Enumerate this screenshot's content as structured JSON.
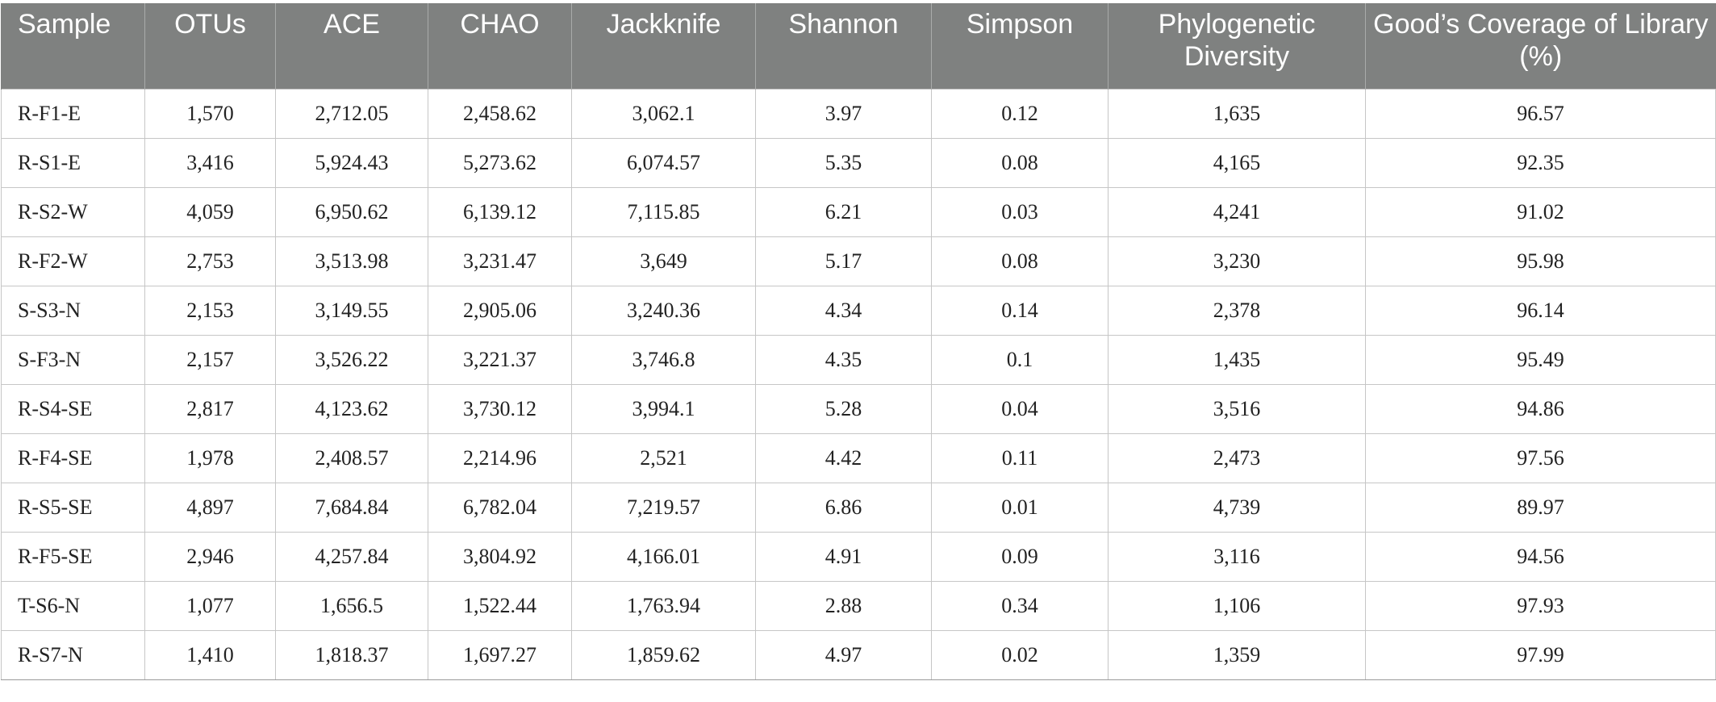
{
  "table": {
    "headers": [
      "Sample",
      "OTUs",
      "ACE",
      "CHAO",
      "Jackknife",
      "Shannon",
      "Simpson",
      "Phylogenetic Diversity",
      "Good’s Coverage of Library (%)"
    ],
    "rows": [
      [
        "R-F1-E",
        "1,570",
        "2,712.05",
        "2,458.62",
        "3,062.1",
        "3.97",
        "0.12",
        "1,635",
        "96.57"
      ],
      [
        "R-S1-E",
        "3,416",
        "5,924.43",
        "5,273.62",
        "6,074.57",
        "5.35",
        "0.08",
        "4,165",
        "92.35"
      ],
      [
        "R-S2-W",
        "4,059",
        "6,950.62",
        "6,139.12",
        "7,115.85",
        "6.21",
        "0.03",
        "4,241",
        "91.02"
      ],
      [
        "R-F2-W",
        "2,753",
        "3,513.98",
        "3,231.47",
        "3,649",
        "5.17",
        "0.08",
        "3,230",
        "95.98"
      ],
      [
        "S-S3-N",
        "2,153",
        "3,149.55",
        "2,905.06",
        "3,240.36",
        "4.34",
        "0.14",
        "2,378",
        "96.14"
      ],
      [
        "S-F3-N",
        "2,157",
        "3,526.22",
        "3,221.37",
        "3,746.8",
        "4.35",
        "0.1",
        "1,435",
        "95.49"
      ],
      [
        "R-S4-SE",
        "2,817",
        "4,123.62",
        "3,730.12",
        "3,994.1",
        "5.28",
        "0.04",
        "3,516",
        "94.86"
      ],
      [
        "R-F4-SE",
        "1,978",
        "2,408.57",
        "2,214.96",
        "2,521",
        "4.42",
        "0.11",
        "2,473",
        "97.56"
      ],
      [
        "R-S5-SE",
        "4,897",
        "7,684.84",
        "6,782.04",
        "7,219.57",
        "6.86",
        "0.01",
        "4,739",
        "89.97"
      ],
      [
        "R-F5-SE",
        "2,946",
        "4,257.84",
        "3,804.92",
        "4,166.01",
        "4.91",
        "0.09",
        "3,116",
        "94.56"
      ],
      [
        "T-S6-N",
        "1,077",
        "1,656.5",
        "1,522.44",
        "1,763.94",
        "2.88",
        "0.34",
        "1,106",
        "97.93"
      ],
      [
        "R-S7-N",
        "1,410",
        "1,818.37",
        "1,697.27",
        "1,859.62",
        "4.97",
        "0.02",
        "1,359",
        "97.99"
      ]
    ]
  }
}
